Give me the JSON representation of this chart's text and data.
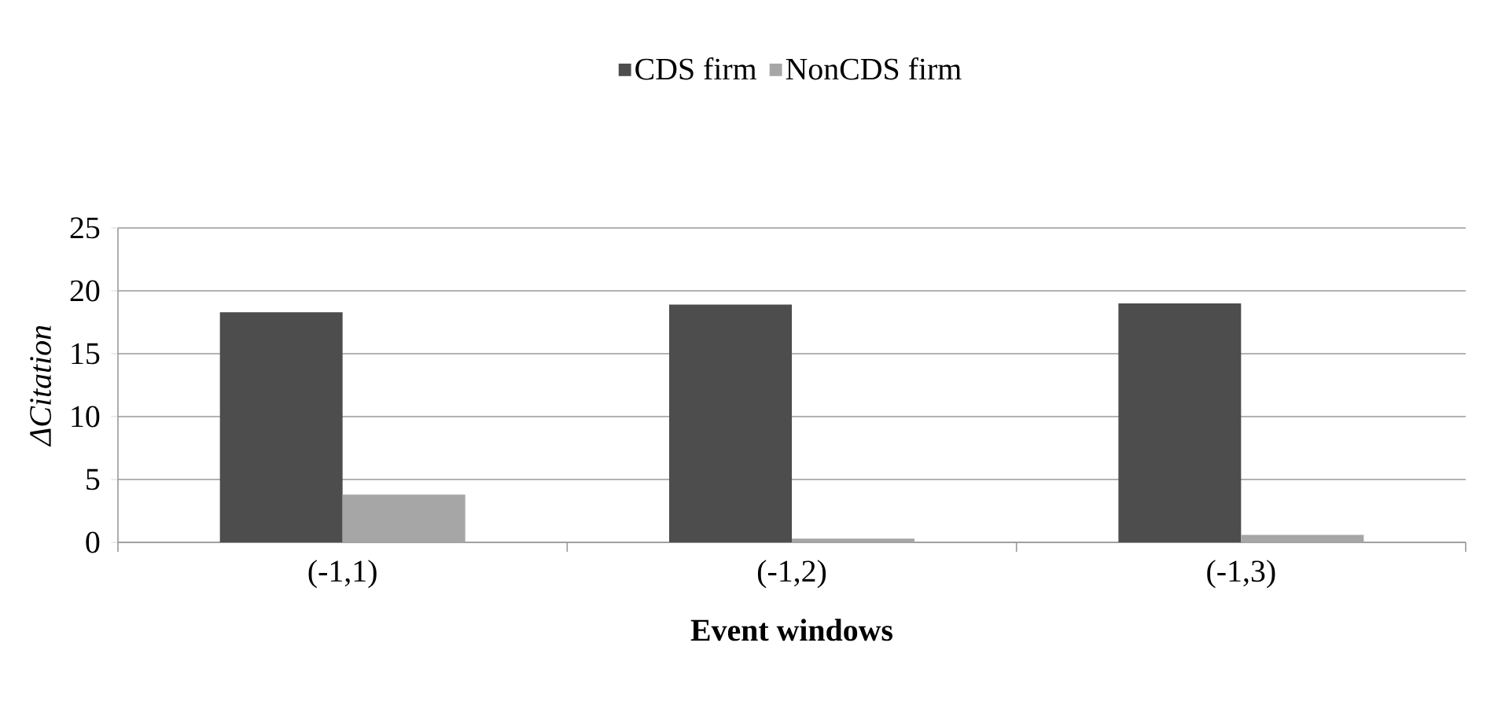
{
  "chart_data": {
    "type": "bar",
    "xlabel": "Event windows",
    "ylabel": "ΔCitation",
    "categories": [
      "(-1,1)",
      "(-1,2)",
      "(-1,3)"
    ],
    "series": [
      {
        "name": "CDS firm",
        "color": "#4d4d4d",
        "values": [
          18.3,
          18.9,
          19.0
        ]
      },
      {
        "name": "NonCDS firm",
        "color": "#a6a6a6",
        "values": [
          3.8,
          0.3,
          0.6
        ]
      }
    ],
    "ylim": [
      0,
      25
    ],
    "yticks": [
      0,
      5,
      10,
      15,
      20,
      25
    ],
    "grid": "y",
    "legend": "top"
  }
}
